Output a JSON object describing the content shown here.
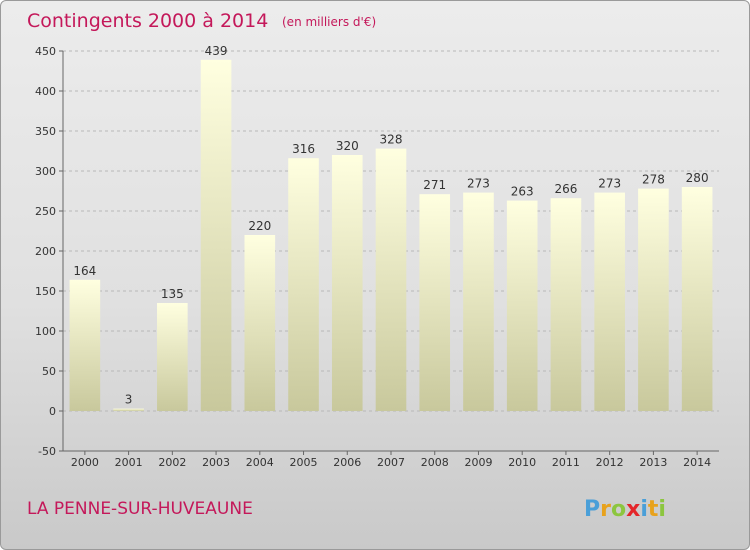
{
  "header": {
    "title": "Contingents 2000 à 2014",
    "subtitle": "(en milliers d'€)"
  },
  "footer": {
    "commune": "LA PENNE-SUR-HUVEAUNE",
    "logo": {
      "text": "Proxiti",
      "letters": [
        {
          "char": "P",
          "color": "#4a9fd8"
        },
        {
          "char": "r",
          "color": "#e8a21c"
        },
        {
          "char": "o",
          "color": "#8cc63f"
        },
        {
          "char": "x",
          "color": "#e4262a"
        },
        {
          "char": "i",
          "color": "#4a9fd8"
        },
        {
          "char": "t",
          "color": "#e8a21c"
        },
        {
          "char": "i",
          "color": "#8cc63f"
        }
      ]
    }
  },
  "colors": {
    "bar_top": "#ffffe0",
    "bar_bottom": "#c8c89c",
    "title": "#c4185a"
  },
  "chart_data": {
    "type": "bar",
    "categories": [
      "2000",
      "2001",
      "2002",
      "2003",
      "2004",
      "2005",
      "2006",
      "2007",
      "2008",
      "2009",
      "2010",
      "2011",
      "2012",
      "2013",
      "2014"
    ],
    "values": [
      164,
      3,
      135,
      439,
      220,
      316,
      320,
      328,
      271,
      273,
      263,
      266,
      273,
      278,
      280
    ],
    "data_labels": [
      "164",
      "3",
      "135",
      "439",
      "220",
      "316",
      "320",
      "328",
      "271",
      "273",
      "263",
      "266",
      "273",
      "278",
      "280"
    ],
    "ylim": [
      -50,
      450
    ],
    "yticks": [
      -50,
      0,
      50,
      100,
      150,
      200,
      250,
      300,
      350,
      400,
      450
    ],
    "ytick_labels": [
      "-50",
      "0",
      "50",
      "100",
      "150",
      "200",
      "250",
      "300",
      "350",
      "400",
      "450"
    ],
    "grid": "horizontal dashed",
    "legend": "none"
  }
}
